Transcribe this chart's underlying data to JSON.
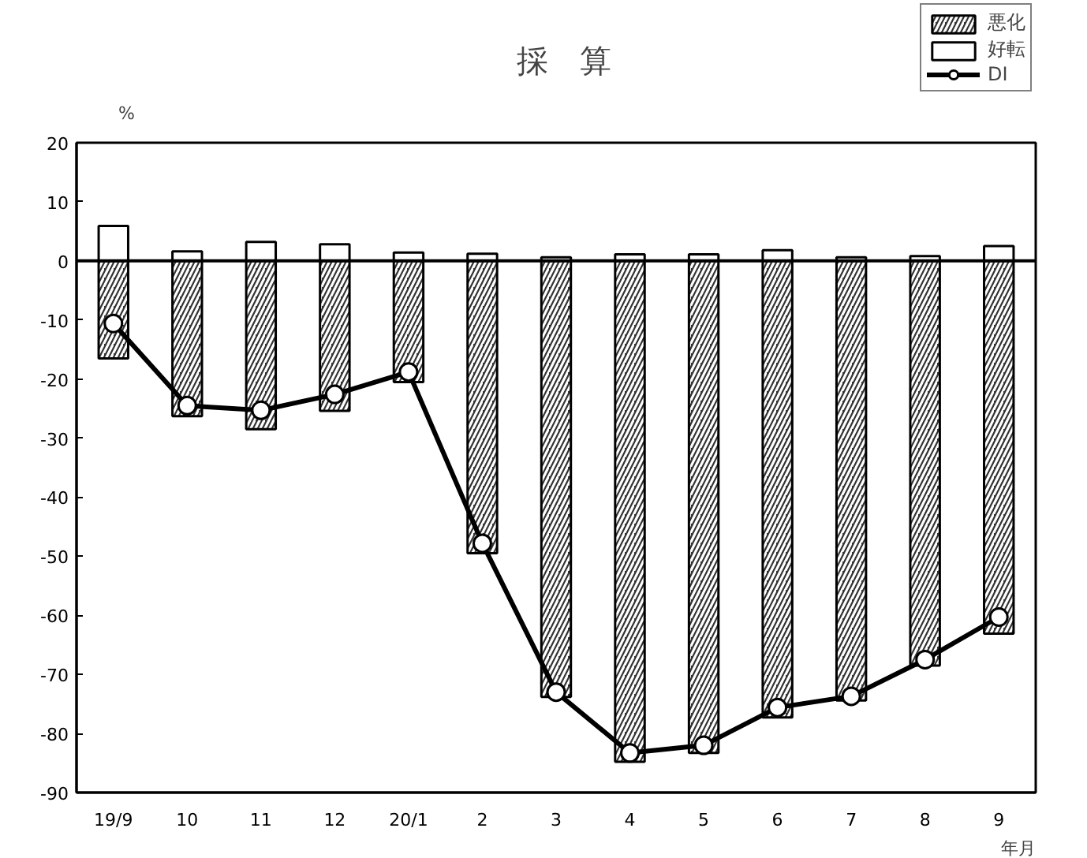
{
  "chart_data": {
    "type": "bar",
    "title": "採　算",
    "ylabel": "%",
    "xlabel": "年月",
    "categories": [
      "19/9",
      "10",
      "11",
      "12",
      "20/1",
      "2",
      "3",
      "4",
      "5",
      "6",
      "7",
      "8",
      "9"
    ],
    "stacked": true,
    "series": [
      {
        "name": "悪化",
        "color": "#333333",
        "values": [
          -16.5,
          -26.3,
          -28.5,
          -25.4,
          -20.5,
          -49.5,
          -73.8,
          -84.8,
          -83.3,
          -77.3,
          -74.4,
          -68.5,
          -63.1
        ]
      },
      {
        "name": "好転",
        "color": "#ffffff",
        "values": [
          5.9,
          1.6,
          3.2,
          2.8,
          1.4,
          1.2,
          0.6,
          1.1,
          1.1,
          1.8,
          0.6,
          0.8,
          2.5
        ]
      },
      {
        "name": "DI",
        "type": "line",
        "color": "#000000",
        "marker": "circle",
        "line_style": "solid",
        "values": [
          -10.6,
          -24.5,
          -25.3,
          -22.6,
          -18.8,
          -47.8,
          -73.0,
          -83.3,
          -82.0,
          -75.6,
          -73.7,
          -67.5,
          -60.3
        ]
      }
    ],
    "ylim": [
      -90,
      20
    ],
    "yticks": [
      -90,
      -80,
      -70,
      -60,
      -50,
      -40,
      -30,
      -20,
      -10,
      0,
      10,
      20
    ],
    "ref_lines": [
      {
        "axis": "y",
        "value": 0,
        "color": "#000000"
      }
    ],
    "grid": false,
    "legend": "top right"
  }
}
